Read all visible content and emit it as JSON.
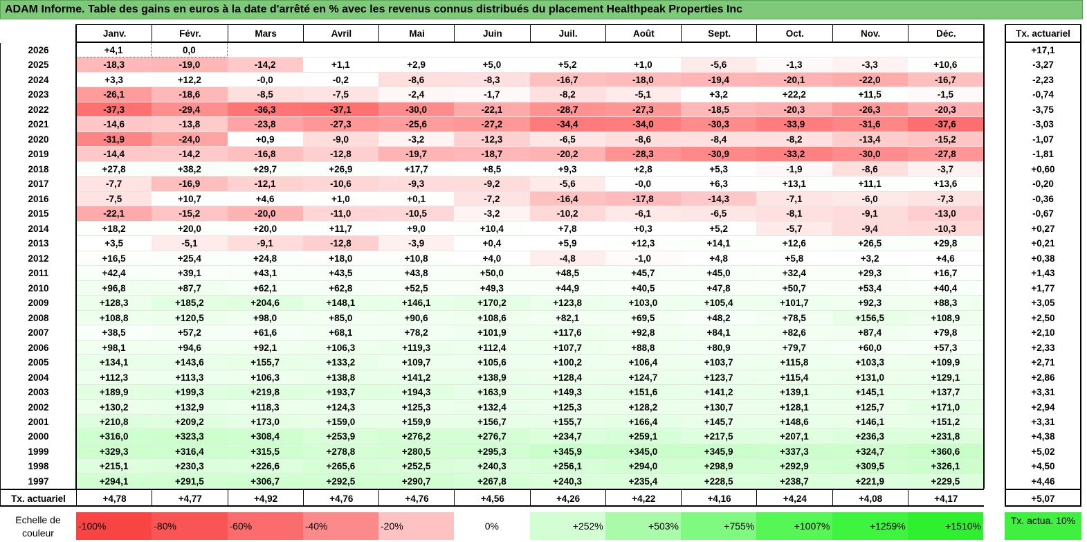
{
  "title": "ADAM Informe. Table des gains en euros à la date d'arrêté en % avec les revenus connus distribués du placement Healthpeak Properties Inc",
  "chart_data": {
    "type": "table",
    "columns": [
      "Janv.",
      "Févr.",
      "Mars",
      "Avril",
      "Mai",
      "Juin",
      "Juil.",
      "Août",
      "Sept.",
      "Oct.",
      "Nov.",
      "Déc."
    ],
    "rate_header": "Tx. actuariel",
    "rows": [
      {
        "year": "2026",
        "values": [
          "+4,1",
          "0,0",
          "",
          "",
          "",
          "",
          "",
          "",
          "",
          "",
          "",
          ""
        ],
        "rate": "+17,1"
      },
      {
        "year": "2025",
        "values": [
          "-18,3",
          "-19,0",
          "-14,2",
          "+1,1",
          "+2,9",
          "+5,0",
          "+5,2",
          "+1,0",
          "-5,6",
          "-1,3",
          "-3,3",
          "+10,6"
        ],
        "rate": "-3,27"
      },
      {
        "year": "2024",
        "values": [
          "+3,3",
          "+12,2",
          "-0,0",
          "-0,2",
          "-8,6",
          "-8,3",
          "-16,7",
          "-18,0",
          "-19,4",
          "-20,1",
          "-22,0",
          "-16,7"
        ],
        "rate": "-2,23"
      },
      {
        "year": "2023",
        "values": [
          "-26,1",
          "-18,6",
          "-8,5",
          "-7,5",
          "-2,4",
          "-1,7",
          "-8,2",
          "-5,1",
          "+3,2",
          "+22,2",
          "+11,5",
          "-1,5"
        ],
        "rate": "-0,74"
      },
      {
        "year": "2022",
        "values": [
          "-37,3",
          "-29,4",
          "-36,3",
          "-37,1",
          "-30,0",
          "-22,1",
          "-28,7",
          "-27,3",
          "-18,5",
          "-20,3",
          "-26,3",
          "-20,3"
        ],
        "rate": "-3,75"
      },
      {
        "year": "2021",
        "values": [
          "-14,6",
          "-13,8",
          "-23,8",
          "-27,3",
          "-25,6",
          "-27,2",
          "-34,4",
          "-34,0",
          "-30,3",
          "-33,9",
          "-31,6",
          "-37,6"
        ],
        "rate": "-3,03"
      },
      {
        "year": "2020",
        "values": [
          "-31,9",
          "-24,0",
          "+0,9",
          "-9,0",
          "-3,2",
          "-12,3",
          "-6,5",
          "-8,6",
          "-8,4",
          "-8,2",
          "-13,4",
          "-15,2"
        ],
        "rate": "-1,07"
      },
      {
        "year": "2019",
        "values": [
          "-14,4",
          "-14,2",
          "-16,8",
          "-12,8",
          "-19,7",
          "-18,7",
          "-20,2",
          "-28,3",
          "-30,9",
          "-33,2",
          "-30,0",
          "-27,8"
        ],
        "rate": "-1,81"
      },
      {
        "year": "2018",
        "values": [
          "+27,8",
          "+38,2",
          "+29,7",
          "+26,9",
          "+17,7",
          "+8,5",
          "+9,3",
          "+2,8",
          "+5,3",
          "-1,9",
          "-8,6",
          "-3,7"
        ],
        "rate": "+0,60"
      },
      {
        "year": "2017",
        "values": [
          "-7,7",
          "-16,9",
          "-12,1",
          "-10,6",
          "-9,3",
          "-9,2",
          "-5,6",
          "-0,0",
          "+6,3",
          "+13,1",
          "+11,1",
          "+13,6"
        ],
        "rate": "-0,20"
      },
      {
        "year": "2016",
        "values": [
          "-7,5",
          "+10,7",
          "+4,6",
          "+1,0",
          "+0,1",
          "-7,2",
          "-16,4",
          "-17,8",
          "-14,3",
          "-7,1",
          "-6,0",
          "-7,3"
        ],
        "rate": "-0,36"
      },
      {
        "year": "2015",
        "values": [
          "-22,1",
          "-15,2",
          "-20,0",
          "-11,0",
          "-10,5",
          "-3,2",
          "-10,2",
          "-6,1",
          "-6,5",
          "-8,1",
          "-9,1",
          "-13,0"
        ],
        "rate": "-0,67"
      },
      {
        "year": "2014",
        "values": [
          "+18,2",
          "+20,0",
          "+20,0",
          "+11,7",
          "+9,0",
          "+10,4",
          "+7,8",
          "+0,3",
          "+5,2",
          "-5,7",
          "-9,4",
          "-10,3"
        ],
        "rate": "+0,27"
      },
      {
        "year": "2013",
        "values": [
          "+3,5",
          "-5,1",
          "-9,1",
          "-12,8",
          "-3,9",
          "+0,4",
          "+5,9",
          "+12,3",
          "+14,1",
          "+12,6",
          "+26,5",
          "+29,8"
        ],
        "rate": "+0,21"
      },
      {
        "year": "2012",
        "values": [
          "+16,5",
          "+25,4",
          "+24,8",
          "+18,0",
          "+10,8",
          "+4,0",
          "-4,8",
          "-1,0",
          "+4,8",
          "+5,8",
          "+3,2",
          "+4,6"
        ],
        "rate": "+0,38"
      },
      {
        "year": "2011",
        "values": [
          "+42,4",
          "+39,1",
          "+43,1",
          "+43,5",
          "+43,8",
          "+50,0",
          "+48,5",
          "+45,7",
          "+45,0",
          "+32,4",
          "+29,3",
          "+16,7"
        ],
        "rate": "+1,43"
      },
      {
        "year": "2010",
        "values": [
          "+96,8",
          "+87,7",
          "+62,1",
          "+62,8",
          "+52,5",
          "+49,3",
          "+44,9",
          "+40,5",
          "+47,8",
          "+50,7",
          "+53,4",
          "+40,4"
        ],
        "rate": "+1,77"
      },
      {
        "year": "2009",
        "values": [
          "+128,3",
          "+185,2",
          "+204,6",
          "+148,1",
          "+146,1",
          "+170,2",
          "+123,8",
          "+103,0",
          "+105,4",
          "+101,7",
          "+92,3",
          "+88,3"
        ],
        "rate": "+3,05"
      },
      {
        "year": "2008",
        "values": [
          "+108,8",
          "+120,5",
          "+98,0",
          "+85,0",
          "+90,6",
          "+108,6",
          "+82,1",
          "+69,5",
          "+48,2",
          "+78,5",
          "+156,5",
          "+108,9"
        ],
        "rate": "+2,50"
      },
      {
        "year": "2007",
        "values": [
          "+38,5",
          "+57,2",
          "+61,6",
          "+68,1",
          "+78,2",
          "+101,9",
          "+117,6",
          "+92,8",
          "+84,1",
          "+82,6",
          "+87,4",
          "+79,8"
        ],
        "rate": "+2,10"
      },
      {
        "year": "2006",
        "values": [
          "+98,1",
          "+94,6",
          "+92,1",
          "+106,3",
          "+119,3",
          "+112,4",
          "+107,7",
          "+88,8",
          "+80,9",
          "+79,7",
          "+60,0",
          "+57,3"
        ],
        "rate": "+2,33"
      },
      {
        "year": "2005",
        "values": [
          "+134,1",
          "+143,6",
          "+155,7",
          "+133,2",
          "+109,7",
          "+105,6",
          "+100,2",
          "+106,4",
          "+103,7",
          "+115,8",
          "+103,3",
          "+109,9"
        ],
        "rate": "+2,71"
      },
      {
        "year": "2004",
        "values": [
          "+112,3",
          "+113,3",
          "+106,3",
          "+138,8",
          "+141,2",
          "+138,9",
          "+128,4",
          "+124,7",
          "+123,7",
          "+115,4",
          "+131,0",
          "+129,1"
        ],
        "rate": "+2,86"
      },
      {
        "year": "2003",
        "values": [
          "+189,9",
          "+199,3",
          "+219,8",
          "+193,7",
          "+194,3",
          "+163,9",
          "+149,3",
          "+151,6",
          "+141,2",
          "+139,1",
          "+145,1",
          "+137,7"
        ],
        "rate": "+3,31"
      },
      {
        "year": "2002",
        "values": [
          "+130,2",
          "+132,9",
          "+118,3",
          "+124,3",
          "+125,3",
          "+132,4",
          "+125,3",
          "+128,2",
          "+130,7",
          "+128,1",
          "+125,7",
          "+171,0"
        ],
        "rate": "+2,94"
      },
      {
        "year": "2001",
        "values": [
          "+210,8",
          "+209,2",
          "+173,0",
          "+159,0",
          "+159,9",
          "+156,7",
          "+155,7",
          "+166,4",
          "+145,7",
          "+148,6",
          "+146,1",
          "+151,2"
        ],
        "rate": "+3,31"
      },
      {
        "year": "2000",
        "values": [
          "+316,0",
          "+323,3",
          "+308,4",
          "+253,9",
          "+276,2",
          "+276,7",
          "+234,7",
          "+259,1",
          "+217,5",
          "+207,1",
          "+236,3",
          "+231,8"
        ],
        "rate": "+4,38"
      },
      {
        "year": "1999",
        "values": [
          "+329,3",
          "+316,4",
          "+315,5",
          "+278,8",
          "+280,5",
          "+295,3",
          "+345,9",
          "+345,0",
          "+345,9",
          "+337,3",
          "+324,7",
          "+360,6"
        ],
        "rate": "+5,02"
      },
      {
        "year": "1998",
        "values": [
          "+215,1",
          "+230,3",
          "+226,6",
          "+265,6",
          "+252,5",
          "+240,3",
          "+256,1",
          "+294,0",
          "+298,9",
          "+292,9",
          "+309,5",
          "+326,1"
        ],
        "rate": "+4,50"
      },
      {
        "year": "1997",
        "values": [
          "+294,1",
          "+291,5",
          "+306,7",
          "+292,5",
          "+290,7",
          "+267,8",
          "+240,3",
          "+235,4",
          "+228,5",
          "+238,7",
          "+221,9",
          "+229,5"
        ],
        "rate": "+4,46"
      }
    ],
    "footer": {
      "label": "Tx. actuariel",
      "values": [
        "+4,78",
        "+4,77",
        "+4,92",
        "+4,76",
        "+4,76",
        "+4,56",
        "+4,26",
        "+4,22",
        "+4,16",
        "+4,24",
        "+4,08",
        "+4,17"
      ],
      "rate": "+5,07"
    },
    "legend": {
      "label": "Echelle de couleur",
      "items": [
        {
          "text": "-100%",
          "color": "#f94444"
        },
        {
          "text": "-80%",
          "color": "#fa5555"
        },
        {
          "text": "-60%",
          "color": "#fb6c6c"
        },
        {
          "text": "-40%",
          "color": "#fd8a8a"
        },
        {
          "text": "-20%",
          "color": "#ffc2c2"
        },
        {
          "text": "0%",
          "color": "#ffffff"
        },
        {
          "text": "+252%",
          "color": "#d3fdd3"
        },
        {
          "text": "+503%",
          "color": "#a9fba9"
        },
        {
          "text": "+755%",
          "color": "#7ff97f"
        },
        {
          "text": "+1007%",
          "color": "#56f656"
        },
        {
          "text": "+1259%",
          "color": "#3ef43e"
        },
        {
          "text": "+1510%",
          "color": "#2ef02e"
        }
      ],
      "rate_note": "Tx. actua. 10%",
      "rate_note_color": "#40f040"
    }
  }
}
